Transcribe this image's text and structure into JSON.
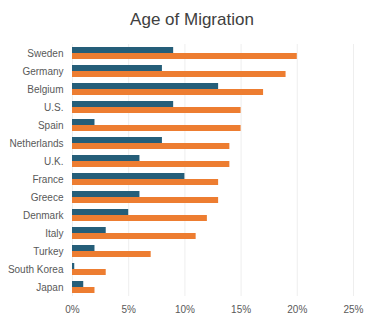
{
  "chart_data": {
    "type": "bar",
    "title": "Age of Migration",
    "orientation": "horizontal",
    "grid": true,
    "categories": [
      "Sweden",
      "Germany",
      "Belgium",
      "U.S.",
      "Spain",
      "Netherlands",
      "U.K.",
      "France",
      "Greece",
      "Denmark",
      "Italy",
      "Turkey",
      "South Korea",
      "Japan"
    ],
    "series": [
      {
        "color": "#255e79",
        "values": [
          9,
          8,
          13,
          9,
          2,
          8,
          6,
          10,
          6,
          5,
          3,
          2,
          0.2,
          1
        ]
      },
      {
        "color": "#ed7d31",
        "values": [
          20,
          19,
          17,
          15,
          15,
          14,
          14,
          13,
          13,
          12,
          11,
          7,
          3,
          2
        ]
      }
    ],
    "xlim": [
      0,
      25
    ],
    "xticks": [
      {
        "value": 0,
        "label": "0%"
      },
      {
        "value": 5,
        "label": "5%"
      },
      {
        "value": 10,
        "label": "10%"
      },
      {
        "value": 15,
        "label": "15%"
      },
      {
        "value": 20,
        "label": "20%"
      },
      {
        "value": 25,
        "label": "25%"
      }
    ]
  }
}
